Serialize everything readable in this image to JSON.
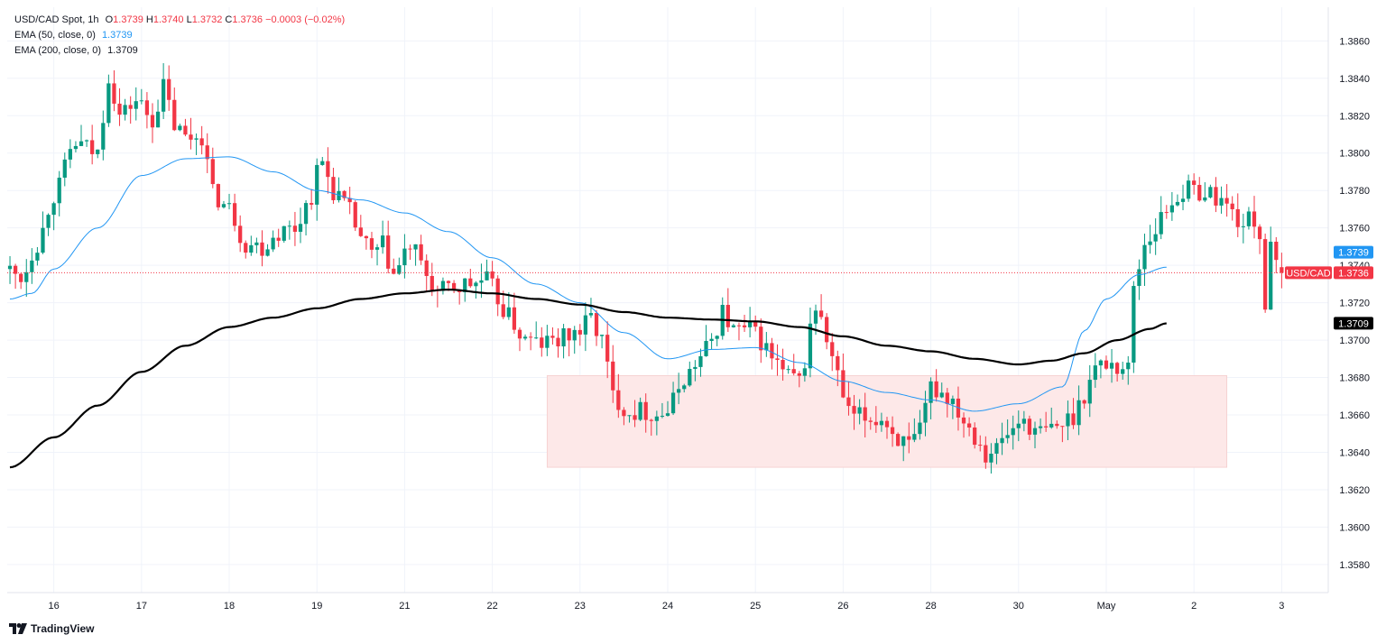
{
  "header": {
    "symbol_label": "USD/CAD Spot, 1h",
    "open_key": "O",
    "open": "1.3739",
    "high_key": "H",
    "high": "1.3740",
    "low_key": "L",
    "low": "1.3732",
    "close_key": "C",
    "close": "1.3736",
    "change": "−0.0003 (−0.02%)",
    "ema50_label": "EMA (50, close, 0)",
    "ema50_value": "1.3739",
    "ema200_label": "EMA (200, close, 0)",
    "ema200_value": "1.3709"
  },
  "price_tags": {
    "ema50": {
      "text": "1.3739",
      "value": 1.3739,
      "color": "#2196f3"
    },
    "symbol": {
      "name": "USD/CAD",
      "text": "1.3736",
      "value": 1.3736,
      "color": "#f23645"
    },
    "ema200": {
      "text": "1.3709",
      "value": 1.3709,
      "color": "#000000"
    }
  },
  "footer": {
    "brand": "TradingView"
  },
  "chart_data": {
    "type": "candlestick",
    "y_ticks": [
      "1.3580",
      "1.3600",
      "1.3620",
      "1.3640",
      "1.3660",
      "1.3680",
      "1.3700",
      "1.3720",
      "1.3740",
      "1.3760",
      "1.3780",
      "1.3800",
      "1.3820",
      "1.3840",
      "1.3860"
    ],
    "ylim": [
      1.3565,
      1.3878
    ],
    "x_ticks": [
      {
        "label": "16",
        "idx": 8
      },
      {
        "label": "17",
        "idx": 24
      },
      {
        "label": "18",
        "idx": 40
      },
      {
        "label": "19",
        "idx": 56
      },
      {
        "label": "21",
        "idx": 72
      },
      {
        "label": "22",
        "idx": 88
      },
      {
        "label": "23",
        "idx": 104
      },
      {
        "label": "24",
        "idx": 120
      },
      {
        "label": "25",
        "idx": 136
      },
      {
        "label": "26",
        "idx": 152
      },
      {
        "label": "28",
        "idx": 168
      },
      {
        "label": "30",
        "idx": 184
      },
      {
        "label": "May",
        "idx": 200
      },
      {
        "label": "2",
        "idx": 216
      },
      {
        "label": "3",
        "idx": 232
      }
    ],
    "current_price": 1.3736,
    "zone": {
      "start_idx": 98,
      "end_idx": 222,
      "low": 1.3632,
      "high": 1.3681,
      "color": "#fde8e8"
    },
    "series": [
      {
        "type": "candles",
        "up_color": "#089981",
        "down_color": "#f23645"
      },
      {
        "name": "EMA 50",
        "color": "#2196f3",
        "anchors": [
          [
            0,
            1.3722
          ],
          [
            4,
            1.3725
          ],
          [
            8,
            1.3738
          ],
          [
            16,
            1.376
          ],
          [
            24,
            1.3788
          ],
          [
            32,
            1.3797
          ],
          [
            40,
            1.3798
          ],
          [
            48,
            1.379
          ],
          [
            56,
            1.378
          ],
          [
            64,
            1.3775
          ],
          [
            72,
            1.3768
          ],
          [
            80,
            1.3758
          ],
          [
            88,
            1.3744
          ],
          [
            96,
            1.373
          ],
          [
            104,
            1.372
          ],
          [
            112,
            1.3704
          ],
          [
            120,
            1.369
          ],
          [
            128,
            1.3695
          ],
          [
            136,
            1.3696
          ],
          [
            144,
            1.3688
          ],
          [
            152,
            1.3678
          ],
          [
            160,
            1.3672
          ],
          [
            168,
            1.3668
          ],
          [
            176,
            1.3662
          ],
          [
            184,
            1.3666
          ],
          [
            192,
            1.3675
          ],
          [
            196,
            1.3705
          ],
          [
            200,
            1.3722
          ],
          [
            206,
            1.3735
          ],
          [
            211,
            1.3739
          ]
        ]
      },
      {
        "name": "EMA 200",
        "color": "#000000",
        "anchors": [
          [
            0,
            1.3632
          ],
          [
            8,
            1.3648
          ],
          [
            16,
            1.3665
          ],
          [
            24,
            1.3683
          ],
          [
            32,
            1.3697
          ],
          [
            40,
            1.3707
          ],
          [
            48,
            1.3712
          ],
          [
            56,
            1.3717
          ],
          [
            64,
            1.3722
          ],
          [
            72,
            1.3725
          ],
          [
            80,
            1.3727
          ],
          [
            88,
            1.3725
          ],
          [
            96,
            1.3722
          ],
          [
            104,
            1.3719
          ],
          [
            112,
            1.3715
          ],
          [
            120,
            1.3712
          ],
          [
            128,
            1.3711
          ],
          [
            136,
            1.371
          ],
          [
            144,
            1.3707
          ],
          [
            152,
            1.3702
          ],
          [
            160,
            1.3697
          ],
          [
            168,
            1.3694
          ],
          [
            176,
            1.369
          ],
          [
            184,
            1.3687
          ],
          [
            190,
            1.3689
          ],
          [
            196,
            1.3693
          ],
          [
            202,
            1.37
          ],
          [
            208,
            1.3706
          ],
          [
            211,
            1.3709
          ]
        ]
      }
    ],
    "price_path": [
      [
        0,
        1.3738
      ],
      [
        3,
        1.3734
      ],
      [
        6,
        1.3752
      ],
      [
        9,
        1.3778
      ],
      [
        13,
        1.3805
      ],
      [
        17,
        1.38
      ],
      [
        19,
        1.3842
      ],
      [
        21,
        1.382
      ],
      [
        24,
        1.3828
      ],
      [
        27,
        1.3818
      ],
      [
        29,
        1.3835
      ],
      [
        31,
        1.3815
      ],
      [
        33,
        1.3808
      ],
      [
        36,
        1.381
      ],
      [
        38,
        1.3778
      ],
      [
        41,
        1.377
      ],
      [
        44,
        1.3752
      ],
      [
        47,
        1.375
      ],
      [
        50,
        1.3758
      ],
      [
        53,
        1.376
      ],
      [
        55,
        1.3772
      ],
      [
        58,
        1.3795
      ],
      [
        60,
        1.378
      ],
      [
        63,
        1.3768
      ],
      [
        65,
        1.3755
      ],
      [
        67,
        1.3745
      ],
      [
        69,
        1.375
      ],
      [
        71,
        1.3735
      ],
      [
        74,
        1.375
      ],
      [
        77,
        1.3735
      ],
      [
        79,
        1.3725
      ],
      [
        82,
        1.3728
      ],
      [
        85,
        1.373
      ],
      [
        88,
        1.3732
      ],
      [
        90,
        1.3722
      ],
      [
        92,
        1.3712
      ],
      [
        95,
        1.37
      ],
      [
        98,
        1.3698
      ],
      [
        101,
        1.37
      ],
      [
        105,
        1.3705
      ],
      [
        107,
        1.3712
      ],
      [
        109,
        1.37
      ],
      [
        111,
        1.367
      ],
      [
        114,
        1.3662
      ],
      [
        117,
        1.3662
      ],
      [
        119,
        1.366
      ],
      [
        121,
        1.3662
      ],
      [
        124,
        1.368
      ],
      [
        127,
        1.369
      ],
      [
        129,
        1.37
      ],
      [
        131,
        1.3715
      ],
      [
        133,
        1.3705
      ],
      [
        136,
        1.3705
      ],
      [
        138,
        1.37
      ],
      [
        140,
        1.369
      ],
      [
        143,
        1.368
      ],
      [
        145,
        1.3678
      ],
      [
        148,
        1.3718
      ],
      [
        150,
        1.37
      ],
      [
        152,
        1.368
      ],
      [
        154,
        1.366
      ],
      [
        157,
        1.3658
      ],
      [
        160,
        1.3658
      ],
      [
        163,
        1.3648
      ],
      [
        165,
        1.3642
      ],
      [
        167,
        1.365
      ],
      [
        169,
        1.3675
      ],
      [
        171,
        1.3672
      ],
      [
        173,
        1.3668
      ],
      [
        175,
        1.3658
      ],
      [
        177,
        1.365
      ],
      [
        179,
        1.364
      ],
      [
        181,
        1.3642
      ],
      [
        183,
        1.365
      ],
      [
        186,
        1.3658
      ],
      [
        188,
        1.365
      ],
      [
        191,
        1.3652
      ],
      [
        193,
        1.3655
      ],
      [
        195,
        1.366
      ],
      [
        197,
        1.3672
      ],
      [
        199,
        1.3685
      ],
      [
        201,
        1.3688
      ],
      [
        203,
        1.3686
      ],
      [
        205,
        1.3685
      ],
      [
        206,
        1.3728
      ],
      [
        208,
        1.3752
      ],
      [
        210,
        1.376
      ],
      [
        212,
        1.377
      ],
      [
        214,
        1.3778
      ],
      [
        216,
        1.378
      ],
      [
        218,
        1.378
      ],
      [
        220,
        1.3778
      ],
      [
        222,
        1.3775
      ],
      [
        224,
        1.3768
      ],
      [
        226,
        1.3762
      ],
      [
        228,
        1.3765
      ],
      [
        229,
        1.3755
      ],
      [
        230,
        1.372
      ],
      [
        231,
        1.3748
      ],
      [
        232,
        1.3738
      ]
    ]
  }
}
